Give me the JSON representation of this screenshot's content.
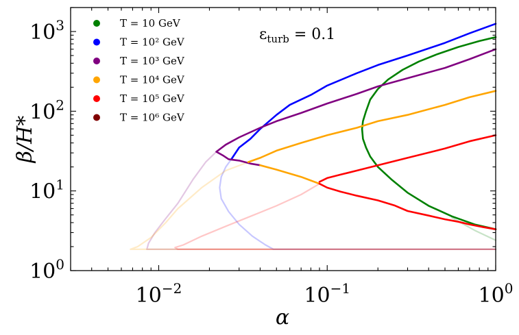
{
  "chart_data": {
    "type": "line",
    "xlabel": "α",
    "ylabel": "β/H*",
    "xscale": "log",
    "yscale": "log",
    "xlim": [
      0.003,
      1
    ],
    "ylim": [
      1,
      2000
    ],
    "xticks": [
      {
        "value": 0.01,
        "label": "10",
        "exp": "−2"
      },
      {
        "value": 0.1,
        "label": "10",
        "exp": "−1"
      },
      {
        "value": 1,
        "label": "10",
        "exp": "0"
      }
    ],
    "yticks": [
      {
        "value": 1,
        "label": "10",
        "exp": "0"
      },
      {
        "value": 10,
        "label": "10",
        "exp": "1"
      },
      {
        "value": 100,
        "label": "10",
        "exp": "2"
      },
      {
        "value": 1000,
        "label": "10",
        "exp": "3"
      }
    ],
    "annotation": "ε_turb = 0.1",
    "legend_position": "top-left",
    "legend": [
      {
        "text": "T = 10 GeV",
        "color": "#008000"
      },
      {
        "text": "T = 10² GeV",
        "color": "#0000ff"
      },
      {
        "text": "T = 10³ GeV",
        "color": "#800080"
      },
      {
        "text": "T = 10⁴ GeV",
        "color": "#ffa500"
      },
      {
        "text": "T = 10⁵ GeV",
        "color": "#ff0000"
      },
      {
        "text": "T = 10⁶ GeV",
        "color": "#800000"
      }
    ],
    "series": [
      {
        "name": "T = 10 GeV",
        "color": "#008000",
        "style": "solid",
        "points": [
          [
            1.0,
            850
          ],
          [
            0.8,
            760
          ],
          [
            0.6,
            640
          ],
          [
            0.45,
            520
          ],
          [
            0.35,
            420
          ],
          [
            0.28,
            330
          ],
          [
            0.23,
            250
          ],
          [
            0.2,
            190
          ],
          [
            0.18,
            140
          ],
          [
            0.17,
            100
          ],
          [
            0.163,
            75
          ],
          [
            0.161,
            60
          ],
          [
            0.163,
            45
          ],
          [
            0.17,
            35
          ],
          [
            0.18,
            27
          ],
          [
            0.2,
            20
          ],
          [
            0.24,
            14
          ],
          [
            0.3,
            9.5
          ],
          [
            0.4,
            6.5
          ],
          [
            0.55,
            4.8
          ],
          [
            0.75,
            3.8
          ],
          [
            1.0,
            3.3
          ]
        ]
      },
      {
        "name": "T = 10 GeV",
        "color": "#008000",
        "style": "faint",
        "points": [
          [
            0.55,
            4.6
          ],
          [
            0.75,
            3.2
          ],
          [
            1.0,
            2.4
          ]
        ]
      },
      {
        "name": "T = 10² GeV",
        "color": "#0000ff",
        "style": "solid",
        "points": [
          [
            0.027,
            25
          ],
          [
            0.03,
            35
          ],
          [
            0.035,
            45
          ],
          [
            0.04,
            60
          ],
          [
            0.05,
            90
          ],
          [
            0.06,
            120
          ],
          [
            0.08,
            160
          ],
          [
            0.1,
            210
          ],
          [
            0.15,
            300
          ],
          [
            0.2,
            380
          ],
          [
            0.3,
            500
          ],
          [
            0.5,
            720
          ],
          [
            0.7,
            950
          ],
          [
            1.0,
            1250
          ]
        ]
      },
      {
        "name": "T = 10² GeV",
        "color": "#0000ff",
        "style": "faint",
        "points": [
          [
            0.027,
            25
          ],
          [
            0.025,
            20
          ],
          [
            0.0235,
            15
          ],
          [
            0.023,
            11
          ],
          [
            0.0235,
            8
          ],
          [
            0.026,
            5.5
          ],
          [
            0.03,
            3.8
          ],
          [
            0.036,
            2.7
          ],
          [
            0.043,
            2.1
          ],
          [
            0.048,
            1.85
          ],
          [
            0.1,
            1.85
          ],
          [
            1.0,
            1.85
          ]
        ]
      },
      {
        "name": "T = 10³ GeV",
        "color": "#800080",
        "style": "solid",
        "points": [
          [
            0.022,
            31
          ],
          [
            0.025,
            38
          ],
          [
            0.03,
            47
          ],
          [
            0.04,
            62
          ],
          [
            0.05,
            75
          ],
          [
            0.07,
            95
          ],
          [
            0.1,
            125
          ],
          [
            0.15,
            165
          ],
          [
            0.2,
            205
          ],
          [
            0.3,
            260
          ],
          [
            0.5,
            350
          ],
          [
            0.7,
            450
          ],
          [
            1.0,
            600
          ]
        ]
      },
      {
        "name": "T = 10³ GeV",
        "color": "#800080",
        "style": "solid",
        "points": [
          [
            0.022,
            31
          ],
          [
            0.024,
            28
          ],
          [
            0.026,
            25
          ],
          [
            0.03,
            24
          ],
          [
            0.035,
            22
          ],
          [
            0.04,
            21
          ]
        ]
      },
      {
        "name": "T = 10³ GeV",
        "color": "#800080",
        "style": "faint",
        "points": [
          [
            0.022,
            31
          ],
          [
            0.019,
            23
          ],
          [
            0.016,
            14
          ],
          [
            0.013,
            7
          ],
          [
            0.011,
            4.5
          ],
          [
            0.0095,
            3
          ],
          [
            0.0087,
            2.2
          ],
          [
            0.0085,
            1.85
          ],
          [
            0.02,
            1.85
          ],
          [
            1.0,
            1.85
          ]
        ]
      },
      {
        "name": "T = 10⁴ GeV",
        "color": "#ffa500",
        "style": "solid",
        "points": [
          [
            0.034,
            23
          ],
          [
            0.04,
            26
          ],
          [
            0.05,
            32
          ],
          [
            0.07,
            40
          ],
          [
            0.1,
            50
          ],
          [
            0.15,
            62
          ],
          [
            0.2,
            75
          ],
          [
            0.3,
            90
          ],
          [
            0.5,
            120
          ],
          [
            0.7,
            150
          ],
          [
            1.0,
            180
          ]
        ]
      },
      {
        "name": "T = 10⁴ GeV",
        "color": "#ffa500",
        "style": "solid",
        "points": [
          [
            0.04,
            21
          ],
          [
            0.05,
            18.5
          ],
          [
            0.06,
            16.5
          ],
          [
            0.07,
            15
          ],
          [
            0.08,
            13.5
          ],
          [
            0.09,
            12.3
          ]
        ]
      },
      {
        "name": "T = 10⁴ GeV",
        "color": "#ffa500",
        "style": "faint",
        "points": [
          [
            0.034,
            23
          ],
          [
            0.025,
            18
          ],
          [
            0.018,
            11
          ],
          [
            0.013,
            6
          ],
          [
            0.011,
            4
          ],
          [
            0.009,
            2.6
          ],
          [
            0.0075,
            2.0
          ],
          [
            0.0068,
            1.85
          ],
          [
            0.02,
            1.85
          ],
          [
            1.0,
            1.85
          ]
        ]
      },
      {
        "name": "T = 10⁵ GeV",
        "color": "#ff0000",
        "style": "solid",
        "points": [
          [
            0.09,
            13
          ],
          [
            0.1,
            14.5
          ],
          [
            0.12,
            16
          ],
          [
            0.15,
            18
          ],
          [
            0.2,
            21
          ],
          [
            0.3,
            26
          ],
          [
            0.5,
            34
          ],
          [
            0.7,
            42
          ],
          [
            1.0,
            50
          ]
        ]
      },
      {
        "name": "T = 10⁵ GeV",
        "color": "#ff0000",
        "style": "solid",
        "points": [
          [
            0.09,
            12.3
          ],
          [
            0.1,
            11
          ],
          [
            0.12,
            9.8
          ],
          [
            0.15,
            8.7
          ],
          [
            0.2,
            7.6
          ],
          [
            0.25,
            6.6
          ],
          [
            0.3,
            5.6
          ],
          [
            0.4,
            4.9
          ],
          [
            0.5,
            4.4
          ],
          [
            0.6,
            4.1
          ],
          [
            0.7,
            3.8
          ],
          [
            0.85,
            3.5
          ],
          [
            1.0,
            3.3
          ]
        ]
      },
      {
        "name": "T = 10⁵ GeV",
        "color": "#ff0000",
        "style": "faint",
        "points": [
          [
            0.09,
            12.3
          ],
          [
            0.07,
            9
          ],
          [
            0.05,
            6.5
          ],
          [
            0.035,
            4.8
          ],
          [
            0.025,
            3.6
          ],
          [
            0.018,
            2.7
          ],
          [
            0.014,
            2.1
          ],
          [
            0.0125,
            1.95
          ],
          [
            0.013,
            1.85
          ],
          [
            0.1,
            1.85
          ],
          [
            1.0,
            1.85
          ]
        ]
      }
    ]
  }
}
